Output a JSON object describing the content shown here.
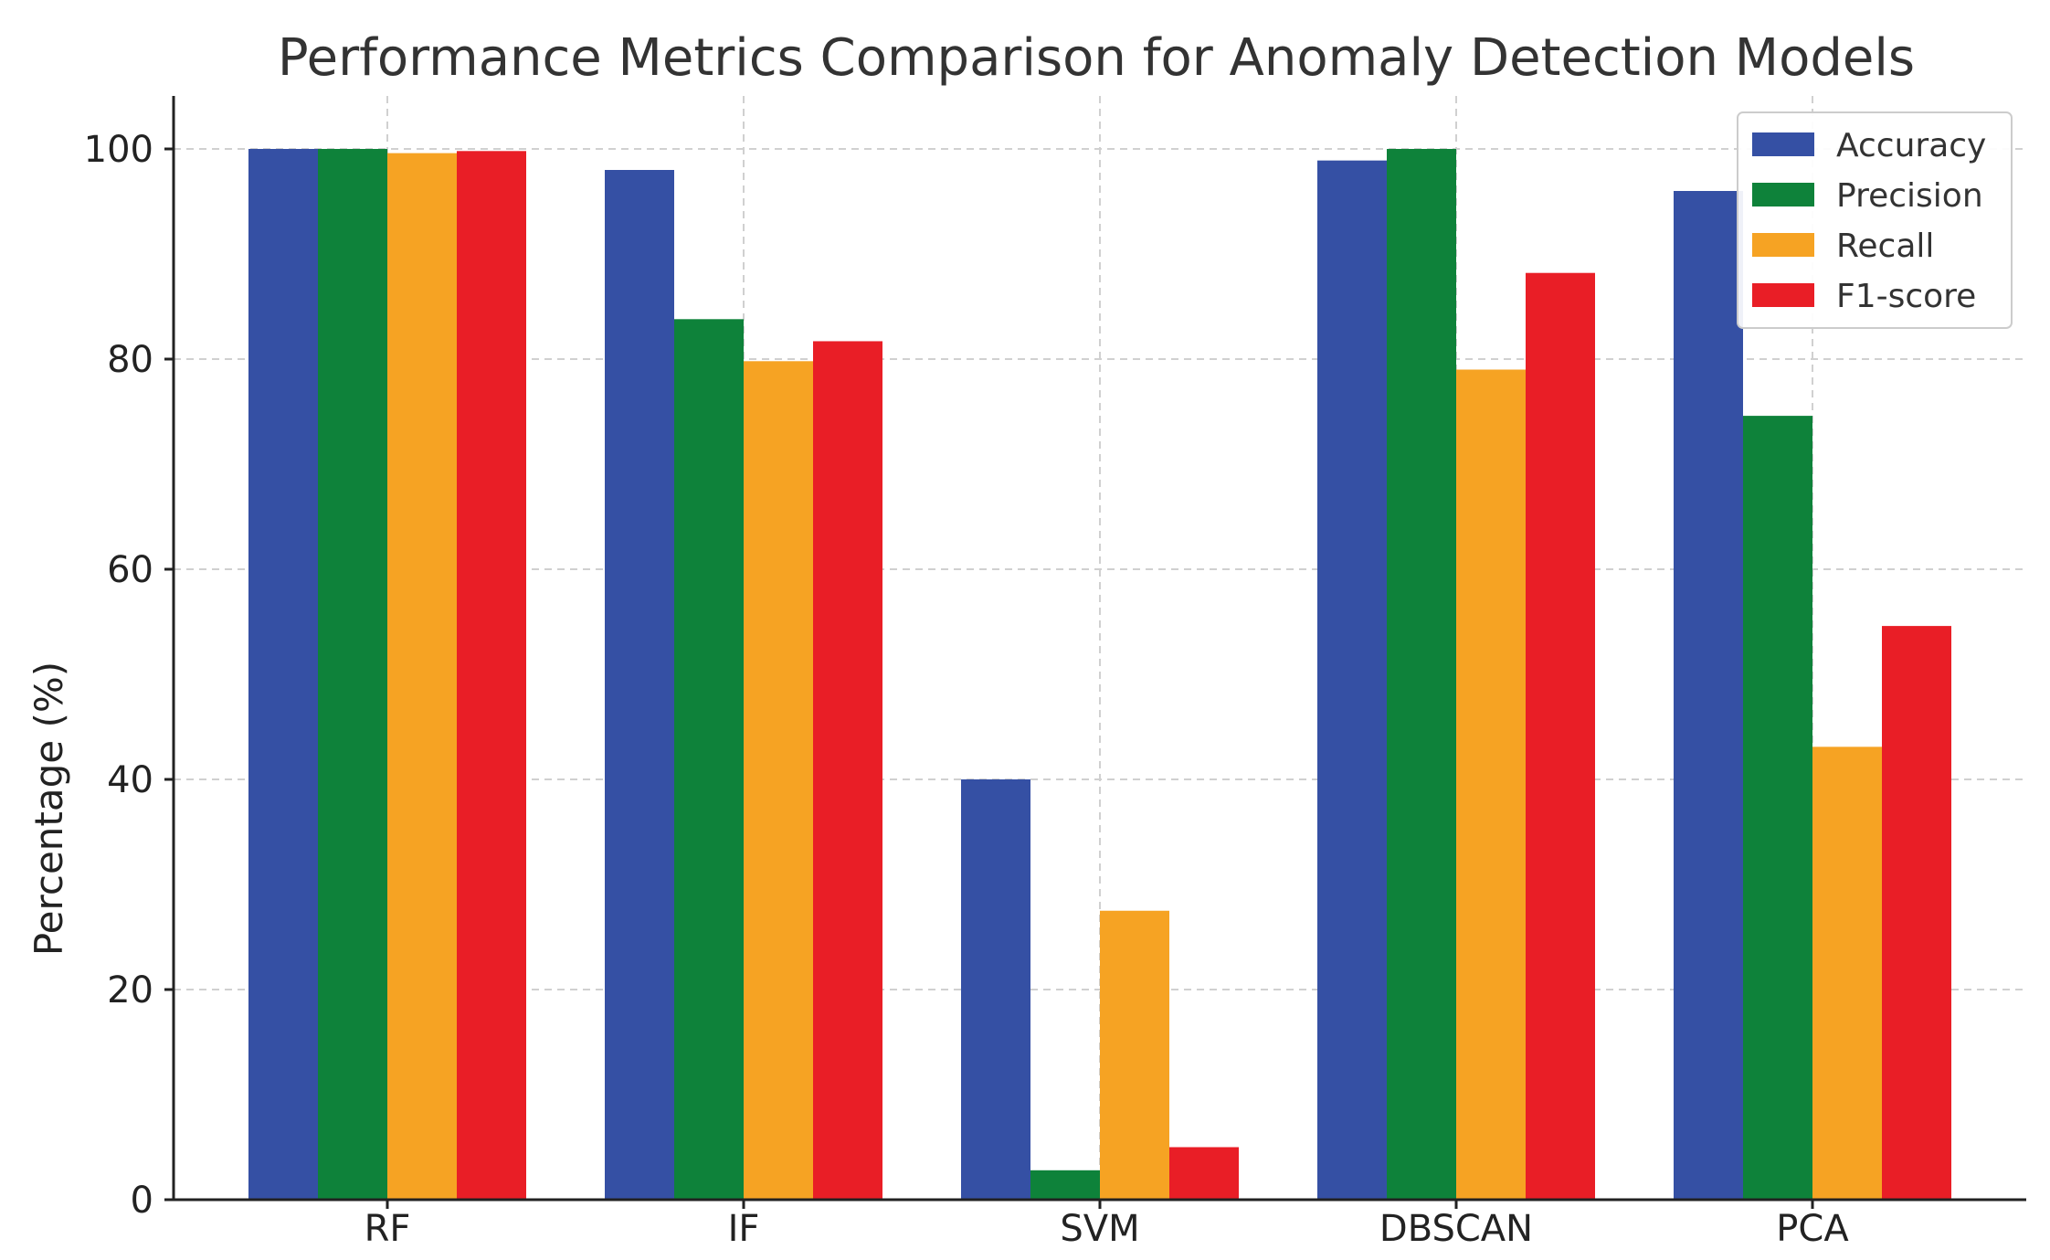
{
  "chart_data": {
    "type": "bar",
    "title": "Performance Metrics Comparison for Anomaly Detection Models",
    "xlabel": "",
    "ylabel": "Percentage (%)",
    "ylim": [
      0,
      105
    ],
    "yticks": [
      0,
      20,
      40,
      60,
      80,
      100
    ],
    "grid": true,
    "legend_position": "top-right",
    "categories": [
      "RF",
      "IF",
      "SVM",
      "DBSCAN",
      "PCA"
    ],
    "series": [
      {
        "name": "Accuracy",
        "color": "#3550a4",
        "values": [
          100,
          98,
          40,
          98.9,
          96
        ]
      },
      {
        "name": "Precision",
        "color": "#0e823a",
        "values": [
          100,
          83.8,
          2.8,
          100,
          74.6
        ]
      },
      {
        "name": "Recall",
        "color": "#f6a323",
        "values": [
          99.6,
          79.8,
          27.5,
          79,
          43.1
        ]
      },
      {
        "name": "F1-score",
        "color": "#e91e26",
        "values": [
          99.8,
          81.7,
          5,
          88.2,
          54.6
        ]
      }
    ]
  }
}
